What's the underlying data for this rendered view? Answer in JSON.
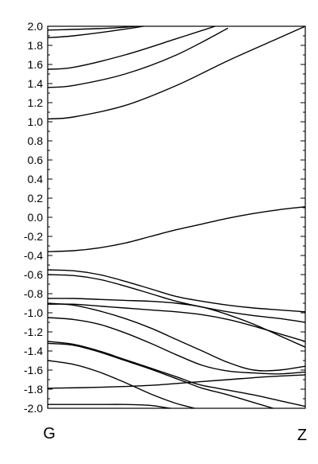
{
  "chart_data": {
    "type": "line",
    "title": "",
    "xlabel": "",
    "ylabel": "",
    "xlim": [
      0,
      1
    ],
    "ylim": [
      -2.0,
      2.0
    ],
    "x_tick_labels": [
      {
        "x": 0,
        "label": "G"
      },
      {
        "x": 1,
        "label": "Z"
      }
    ],
    "y_ticks": [
      -2.0,
      -1.8,
      -1.6,
      -1.4,
      -1.2,
      -1.0,
      -0.8,
      -0.6,
      -0.4,
      -0.2,
      0.0,
      0.2,
      0.4,
      0.6,
      0.8,
      1.0,
      1.2,
      1.4,
      1.6,
      1.8,
      2.0
    ],
    "y_tick_labels": [
      "-2.0",
      "-1.8",
      "-1.6",
      "-1.4",
      "-1.2",
      "-1.0",
      "-0.8",
      "-0.6",
      "-0.4",
      "-0.2",
      "0.0",
      "0.2",
      "0.4",
      "0.6",
      "0.8",
      "1.0",
      "1.2",
      "1.4",
      "1.6",
      "1.8",
      "2.0"
    ],
    "y_minor_step": 0.1,
    "grid": false,
    "legend": "none",
    "line_color": "#000000",
    "series": [
      {
        "x": [
          0,
          0.3,
          0.6
        ],
        "values": [
          1.96,
          1.99,
          2.08
        ]
      },
      {
        "x": [
          0,
          0.1,
          0.3,
          0.5,
          0.6
        ],
        "values": [
          1.88,
          1.9,
          1.97,
          2.06,
          2.12
        ]
      },
      {
        "x": [
          0,
          0.1,
          0.3,
          0.5,
          0.65
        ],
        "values": [
          1.55,
          1.57,
          1.7,
          1.87,
          2.0
        ]
      },
      {
        "x": [
          0,
          0.1,
          0.3,
          0.5,
          0.7
        ],
        "values": [
          1.36,
          1.38,
          1.5,
          1.7,
          1.98
        ]
      },
      {
        "x": [
          0,
          0.1,
          0.3,
          0.5,
          0.7,
          0.9,
          1.0
        ],
        "values": [
          1.03,
          1.05,
          1.17,
          1.38,
          1.64,
          1.88,
          2.0
        ]
      },
      {
        "x": [
          0,
          0.1,
          0.2,
          0.3,
          0.4,
          0.5,
          0.6,
          0.7,
          0.8,
          0.9,
          1.0
        ],
        "values": [
          -0.36,
          -0.35,
          -0.32,
          -0.27,
          -0.2,
          -0.13,
          -0.07,
          -0.01,
          0.04,
          0.08,
          0.11
        ]
      },
      {
        "x": [
          0,
          0.1,
          0.2,
          0.3,
          0.4,
          0.5,
          0.6,
          0.7,
          0.8,
          0.9,
          1.0
        ],
        "values": [
          -0.55,
          -0.56,
          -0.6,
          -0.67,
          -0.75,
          -0.83,
          -0.88,
          -0.92,
          -0.95,
          -0.97,
          -0.99
        ]
      },
      {
        "x": [
          0,
          0.1,
          0.2,
          0.3,
          0.4,
          0.5,
          0.6,
          0.7,
          0.8,
          0.9,
          1.0
        ],
        "values": [
          -0.6,
          -0.61,
          -0.65,
          -0.72,
          -0.8,
          -0.88,
          -0.94,
          -0.99,
          -1.03,
          -1.06,
          -1.1
        ]
      },
      {
        "x": [
          0,
          0.1,
          0.2,
          0.3,
          0.4,
          0.5,
          0.6,
          0.7,
          0.8,
          0.9,
          1.0
        ],
        "values": [
          -0.85,
          -0.85,
          -0.86,
          -0.87,
          -0.88,
          -0.9,
          -0.94,
          -1.02,
          -1.12,
          -1.24,
          -1.36
        ]
      },
      {
        "x": [
          0,
          0.1,
          0.2,
          0.3,
          0.4,
          0.5,
          0.6,
          0.7,
          0.8,
          0.9,
          1.0
        ],
        "values": [
          -0.91,
          -0.91,
          -0.93,
          -0.95,
          -0.97,
          -0.99,
          -1.02,
          -1.07,
          -1.14,
          -1.22,
          -1.3
        ]
      },
      {
        "x": [
          0,
          0.1,
          0.2,
          0.3,
          0.4,
          0.5,
          0.6,
          0.7,
          0.8,
          0.9,
          1.0
        ],
        "values": [
          -0.9,
          -0.92,
          -0.98,
          -1.06,
          -1.16,
          -1.28,
          -1.4,
          -1.52,
          -1.6,
          -1.6,
          -1.56
        ]
      },
      {
        "x": [
          0,
          0.1,
          0.2,
          0.3,
          0.4,
          0.5,
          0.6,
          0.7,
          0.8,
          0.9,
          1.0
        ],
        "values": [
          -1.05,
          -1.07,
          -1.12,
          -1.21,
          -1.32,
          -1.44,
          -1.55,
          -1.61,
          -1.63,
          -1.64,
          -1.62
        ]
      },
      {
        "x": [
          0,
          0.1,
          0.2,
          0.3,
          0.4,
          0.5,
          0.55,
          0.6,
          0.7,
          0.8,
          0.9,
          1.0
        ],
        "values": [
          -1.32,
          -1.34,
          -1.41,
          -1.5,
          -1.59,
          -1.69,
          -1.74,
          -1.79,
          -1.86,
          -1.94,
          -2.02,
          -2.1
        ]
      },
      {
        "x": [
          0,
          0.1,
          0.2,
          0.3,
          0.4,
          0.5,
          0.55,
          0.6,
          0.7,
          0.8,
          0.9,
          1.0
        ],
        "values": [
          -1.3,
          -1.33,
          -1.4,
          -1.49,
          -1.58,
          -1.67,
          -1.72,
          -1.76,
          -1.81,
          -1.86,
          -1.92,
          -1.98
        ]
      },
      {
        "x": [
          0,
          0.1,
          0.2,
          0.3,
          0.4,
          0.5,
          0.6,
          0.7
        ],
        "values": [
          -1.5,
          -1.54,
          -1.62,
          -1.73,
          -1.85,
          -1.95,
          -2.02,
          -2.1
        ]
      },
      {
        "x": [
          0,
          0.2,
          0.4,
          0.55,
          0.7,
          0.85,
          1.0
        ],
        "values": [
          -1.79,
          -1.78,
          -1.76,
          -1.73,
          -1.7,
          -1.67,
          -1.65
        ]
      },
      {
        "x": [
          0,
          0.1,
          0.2,
          0.3,
          0.4,
          0.45,
          0.5,
          0.55
        ],
        "values": [
          -1.96,
          -1.96,
          -1.96,
          -1.96,
          -1.97,
          -1.99,
          -2.01,
          -2.03
        ]
      }
    ]
  }
}
